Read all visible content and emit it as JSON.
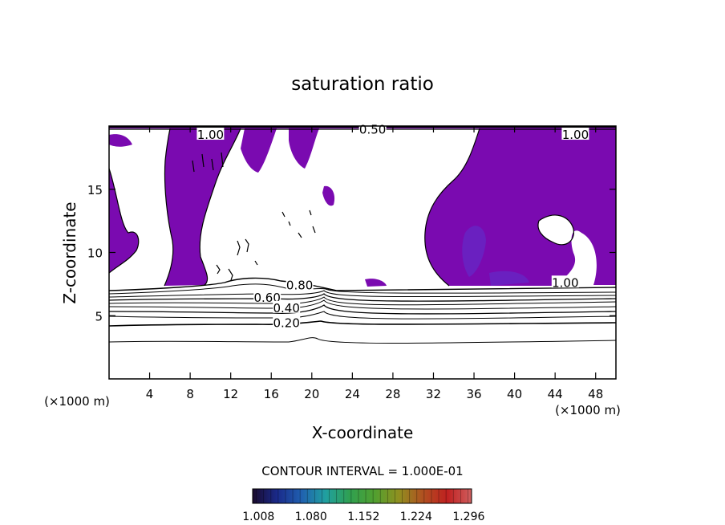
{
  "chart_data": {
    "type": "contour",
    "title": "saturation ratio",
    "xlabel": "X-coordinate",
    "ylabel": "Z-coordinate",
    "x_units": "(×1000 m)",
    "y_units": "(×1000 m)",
    "xlim": [
      0,
      50
    ],
    "ylim": [
      0,
      20
    ],
    "xticks": [
      4,
      8,
      12,
      16,
      20,
      24,
      28,
      32,
      36,
      40,
      44,
      48
    ],
    "yticks": [
      5,
      10,
      15
    ],
    "contour_interval_label": "CONTOUR INTERVAL = 1.000E-01",
    "contour_labels": [
      {
        "text": "0.80",
        "x": 18.8,
        "y": 7.4
      },
      {
        "text": "0.60",
        "x": 15.6,
        "y": 6.4
      },
      {
        "text": "0.40",
        "x": 17.5,
        "y": 5.6
      },
      {
        "text": "0.20",
        "x": 17.5,
        "y": 4.4
      },
      {
        "text": "1.00",
        "x": 45,
        "y": 7.6
      },
      {
        "text": "1.00",
        "x": 10,
        "y": 19.3
      },
      {
        "text": "1.00",
        "x": 46,
        "y": 19.3
      },
      {
        "text": "0.50",
        "x": 26,
        "y": 19.7
      }
    ],
    "colorbar": {
      "ticks": [
        "1.008",
        "1.080",
        "1.152",
        "1.224",
        "1.296"
      ],
      "range": [
        1.0,
        1.3
      ],
      "colors": [
        "#1a0a2e",
        "#1a2a8a",
        "#2060b0",
        "#20a0a0",
        "#30a050",
        "#50a030",
        "#909020",
        "#b05020",
        "#c02020",
        "#d06060"
      ]
    },
    "fill_color": "#7a0ab0",
    "fill_color_dark": "#6a20c0"
  }
}
